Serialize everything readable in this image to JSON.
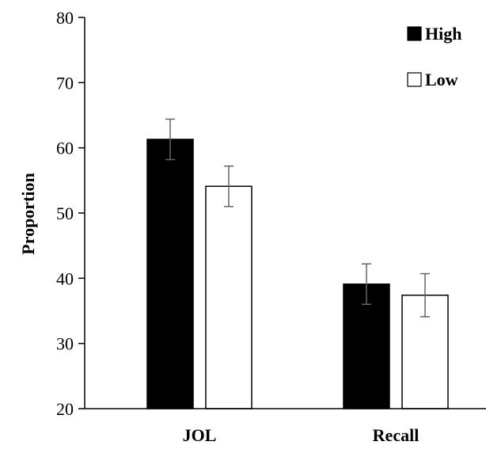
{
  "chart_data": {
    "type": "bar",
    "title": "",
    "xlabel": "",
    "ylabel": "Proportion",
    "ylim": [
      20,
      80
    ],
    "yticks": [
      20,
      30,
      40,
      50,
      60,
      70,
      80
    ],
    "grid": false,
    "legend_position": "top-right",
    "categories": [
      "JOL",
      "Recall"
    ],
    "series": [
      {
        "name": "High",
        "values": [
          61.3,
          39.1
        ],
        "errors": [
          3.1,
          3.1
        ],
        "color": "#000000"
      },
      {
        "name": "Low",
        "values": [
          54.1,
          37.4
        ],
        "errors": [
          3.1,
          3.3
        ],
        "color": "#ffffff"
      }
    ]
  }
}
